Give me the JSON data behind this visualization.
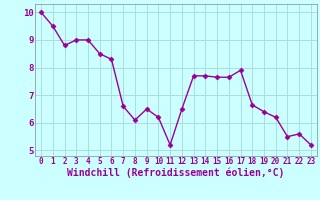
{
  "x": [
    0,
    1,
    2,
    3,
    4,
    5,
    6,
    7,
    8,
    9,
    10,
    11,
    12,
    13,
    14,
    15,
    16,
    17,
    18,
    19,
    20,
    21,
    22,
    23
  ],
  "y": [
    10.0,
    9.5,
    8.8,
    9.0,
    9.0,
    8.5,
    8.3,
    6.6,
    6.1,
    6.5,
    6.2,
    5.2,
    6.5,
    7.7,
    7.7,
    7.65,
    7.65,
    7.9,
    6.65,
    6.4,
    6.2,
    5.5,
    5.6,
    5.2
  ],
  "line_color": "#990099",
  "marker": "D",
  "markersize": 2.5,
  "bg_color": "#ccffff",
  "grid_color": "#aadddd",
  "xlabel": "Windchill (Refroidissement éolien,°C)",
  "xlabel_color": "#990099",
  "xlabel_fontsize": 7,
  "ylabel_ticks": [
    5,
    6,
    7,
    8,
    9,
    10
  ],
  "xtick_labels": [
    "0",
    "1",
    "2",
    "3",
    "4",
    "5",
    "6",
    "7",
    "8",
    "9",
    "10",
    "11",
    "12",
    "13",
    "14",
    "15",
    "16",
    "17",
    "18",
    "19",
    "20",
    "21",
    "22",
    "23"
  ],
  "ylim": [
    4.8,
    10.3
  ],
  "xlim": [
    -0.5,
    23.5
  ],
  "tick_color": "#990099",
  "tick_fontsize": 5.5,
  "linewidth": 1.0,
  "spine_color": "#888888"
}
